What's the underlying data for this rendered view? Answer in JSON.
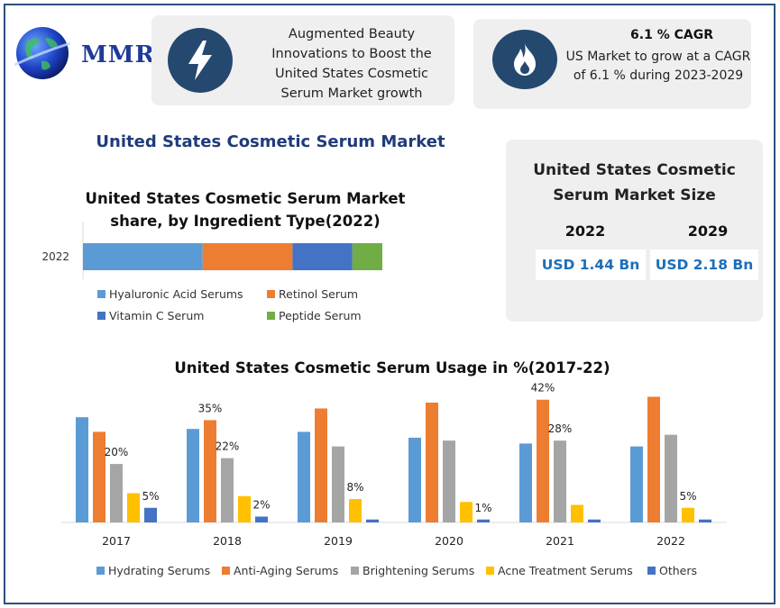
{
  "brand": {
    "name": "MMR"
  },
  "card_innovation": {
    "icon": "lightning-icon",
    "lines": [
      "Augmented Beauty",
      "Innovations to Boost the",
      "United States Cosmetic",
      "Serum Market growth"
    ]
  },
  "card_cagr": {
    "icon": "flame-icon",
    "title": "6.1 % CAGR",
    "lines": [
      "US Market to grow at a CAGR",
      "of 6.1 % during 2023-2029"
    ]
  },
  "main_title": "United States Cosmetic Serum Market",
  "market_size": {
    "title_lines": [
      "United States Cosmetic",
      "Serum Market Size"
    ],
    "year1": "2022",
    "value1": "USD 1.44 Bn",
    "year2": "2029",
    "value2": "USD 2.18 Bn"
  },
  "chart_data": [
    {
      "type": "bar",
      "orientation": "horizontal",
      "stacked": true,
      "title_lines": [
        "United States Cosmetic Serum Market",
        "share, by Ingredient Type(2022)"
      ],
      "categories": [
        "2022"
      ],
      "series": [
        {
          "name": "Hyaluronic Acid Serums",
          "color": "#5b9bd5",
          "values": [
            40
          ]
        },
        {
          "name": "Retinol Serum",
          "color": "#ed7d31",
          "values": [
            30
          ]
        },
        {
          "name": "Vitamin C Serum",
          "color": "#4472c4",
          "values": [
            20
          ]
        },
        {
          "name": "Peptide Serum",
          "color": "#70ad47",
          "values": [
            10
          ]
        }
      ],
      "legend_position": "bottom",
      "grid": false
    },
    {
      "type": "bar",
      "title": "United States Cosmetic Serum Usage in %(2017-22)",
      "categories": [
        "2017",
        "2018",
        "2019",
        "2020",
        "2021",
        "2022"
      ],
      "ylim": [
        0,
        45
      ],
      "series": [
        {
          "name": "Hydrating Serums",
          "color": "#5b9bd5",
          "values": [
            36,
            32,
            31,
            29,
            27,
            26
          ]
        },
        {
          "name": "Anti-Aging Serums",
          "color": "#ed7d31",
          "values": [
            31,
            35,
            39,
            41,
            42,
            43
          ]
        },
        {
          "name": "Brightening Serums",
          "color": "#a5a5a5",
          "values": [
            20,
            22,
            26,
            28,
            28,
            30
          ]
        },
        {
          "name": "Acne Treatment Serums",
          "color": "#ffc000",
          "values": [
            10,
            9,
            8,
            7,
            6,
            5
          ]
        },
        {
          "name": "Others",
          "color": "#4472c4",
          "values": [
            5,
            2,
            1,
            1,
            1,
            1
          ]
        }
      ],
      "data_labels": [
        {
          "category": "2017",
          "series": "Brightening Serums",
          "text": "20%"
        },
        {
          "category": "2017",
          "series": "Others",
          "text": "5%"
        },
        {
          "category": "2018",
          "series": "Anti-Aging Serums",
          "text": "35%"
        },
        {
          "category": "2018",
          "series": "Brightening Serums",
          "text": "22%"
        },
        {
          "category": "2018",
          "series": "Others",
          "text": "2%"
        },
        {
          "category": "2019",
          "series": "Acne Treatment Serums",
          "text": "8%"
        },
        {
          "category": "2020",
          "series": "Others",
          "text": "1%"
        },
        {
          "category": "2021",
          "series": "Anti-Aging Serums",
          "text": "42%"
        },
        {
          "category": "2021",
          "series": "Brightening Serums",
          "text": "28%"
        },
        {
          "category": "2022",
          "series": "Acne Treatment Serums",
          "text": "5%"
        }
      ],
      "legend_position": "bottom",
      "grid": false
    }
  ]
}
